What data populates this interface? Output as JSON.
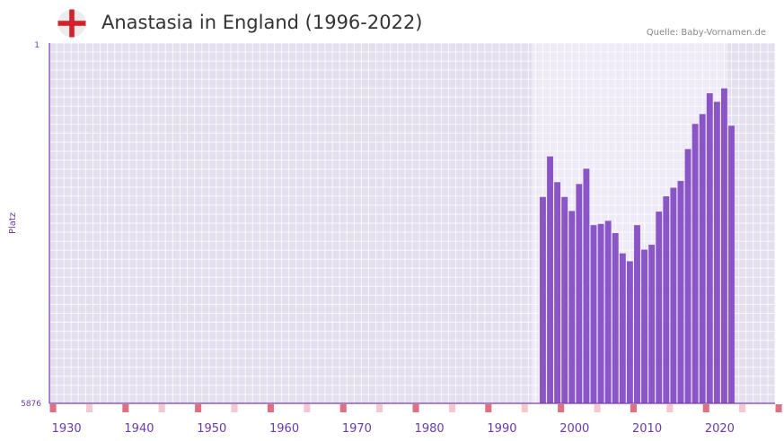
{
  "header": {
    "title": "Anastasia in England (1996-2022)",
    "source": "Quelle: Baby-Vornamen.de",
    "flag_icon": "england-flag-icon"
  },
  "colors": {
    "bar": "#8a55c6",
    "plot_bg": "#e3dfee",
    "highlight_bg": "#eeebf6",
    "axis": "#7a3fa8",
    "tick_label": "#6c3aa8",
    "marker": "#e07080",
    "marker_light": "#f4c8d0",
    "flag_red": "#d4202a"
  },
  "chart_data": {
    "type": "bar",
    "title": "Anastasia in England (1996-2022)",
    "ylabel": "Platz",
    "xlabel": "",
    "y_axis_inverted": true,
    "ylim": [
      1,
      5876
    ],
    "y_tick_labels": [
      "1",
      "5876"
    ],
    "xlim": [
      1928,
      2028
    ],
    "x_tick_labels": [
      "1930",
      "1940",
      "1950",
      "1960",
      "1970",
      "1980",
      "1990",
      "2000",
      "2010",
      "2020"
    ],
    "highlight_range": [
      1994.5,
      2021.5
    ],
    "series": [
      {
        "name": "Anastasia",
        "x": [
          1996,
          1997,
          1998,
          1999,
          2000,
          2001,
          2002,
          2003,
          2004,
          2005,
          2006,
          2007,
          2008,
          2009,
          2010,
          2011,
          2012,
          2013,
          2014,
          2015,
          2016,
          2017,
          2018,
          2019,
          2020,
          2021,
          2022
        ],
        "values": [
          2510,
          1850,
          2270,
          2510,
          2740,
          2300,
          2050,
          2970,
          2950,
          2900,
          3100,
          3430,
          3560,
          2970,
          3370,
          3290,
          2750,
          2500,
          2360,
          2250,
          1730,
          1320,
          1160,
          820,
          960,
          740,
          1350
        ]
      }
    ]
  }
}
